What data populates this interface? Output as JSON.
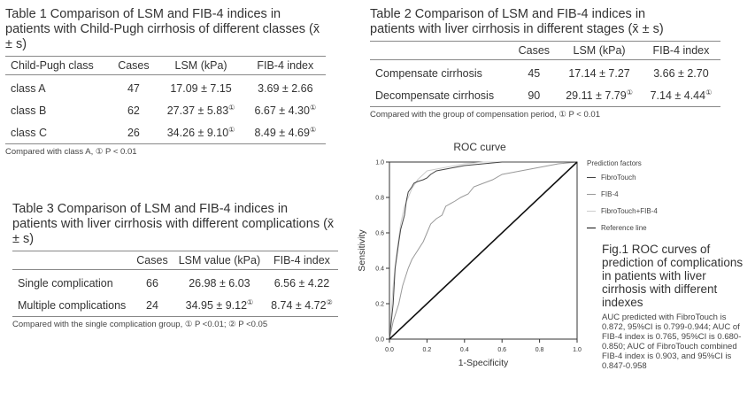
{
  "table1": {
    "title": "Table 1 Comparison of LSM and FIB-4 indices in patients with Child-Pugh cirrhosis of different classes (x̄ ± s)",
    "headers": [
      "Child-Pugh class",
      "Cases",
      "LSM (kPa)",
      "FIB-4 index"
    ],
    "rows": [
      {
        "label": "class A",
        "cases": "47",
        "lsm": "17.09 ± 7.15",
        "lsm_mark": "",
        "fib": "3.69 ± 2.66",
        "fib_mark": ""
      },
      {
        "label": "class B",
        "cases": "62",
        "lsm": "27.37 ± 5.83",
        "lsm_mark": "①",
        "fib": "6.67 ± 4.30",
        "fib_mark": "①"
      },
      {
        "label": "class C",
        "cases": "26",
        "lsm": "34.26 ± 9.10",
        "lsm_mark": "①",
        "fib": "8.49 ± 4.69",
        "fib_mark": "①"
      }
    ],
    "note": "Compared with class A, ① P < 0.01"
  },
  "table2": {
    "title": "Table 2 Comparison of LSM and FIB-4 indices in patients with liver cirrhosis in different stages (x̄ ± s)",
    "headers": [
      "",
      "Cases",
      "LSM (kPa)",
      "FIB-4 index"
    ],
    "rows": [
      {
        "label": "Compensate cirrhosis",
        "cases": "45",
        "lsm": "17.14 ± 7.27",
        "lsm_mark": "",
        "fib": "3.66 ± 2.70",
        "fib_mark": ""
      },
      {
        "label": "Decompensate cirrhosis",
        "cases": "90",
        "lsm": "29.11 ± 7.79",
        "lsm_mark": "①",
        "fib": "7.14 ± 4.44",
        "fib_mark": "①"
      }
    ],
    "note": "Compared with the group of compensation period, ① P < 0.01"
  },
  "table3": {
    "title": "Table 3 Comparison of LSM and FIB-4 indices in patients with liver cirrhosis with different complications (x̄ ± s)",
    "headers": [
      "",
      "Cases",
      "LSM value (kPa)",
      "FIB-4 index"
    ],
    "rows": [
      {
        "label": "Single complication",
        "cases": "66",
        "lsm": "26.98 ± 6.03",
        "lsm_mark": "",
        "fib": "6.56 ± 4.22",
        "fib_mark": ""
      },
      {
        "label": "Multiple complications",
        "cases": "24",
        "lsm": "34.95 ± 9.12",
        "lsm_mark": "①",
        "fib": "8.74 ± 4.72",
        "fib_mark": "②"
      }
    ],
    "note": "Compared with the single complication group, ① P <0.01; ② P <0.05"
  },
  "figure": {
    "caption": "Fig.1 ROC curves of prediction of complications in patients with liver cirrhosis with different indexes",
    "note": "AUC predicted with FibroTouch is 0.872, 95%CI is 0.799-0.944; AUC of FIB-4 index is 0.765, 95%CI is 0.680-0.850; AUC of FibroTouch combined FIB-4 index is 0.903, and 95%CI is 0.847-0.958"
  },
  "chart_data": {
    "type": "line",
    "title": "ROC curve",
    "xlabel": "1-Specificity",
    "ylabel": "Sensitivity",
    "xlim": [
      0,
      1
    ],
    "ylim": [
      0,
      1
    ],
    "xticks": [
      "0.0",
      "0.2",
      "0.4",
      "0.6",
      "0.8",
      "1.0"
    ],
    "yticks": [
      "0.0",
      "0.2",
      "0.4",
      "0.6",
      "0.8",
      "1.0"
    ],
    "legend_title": "Prediction factors",
    "legend_placement": "right",
    "series": [
      {
        "name": "FibroTouch",
        "color": "#444444",
        "x": [
          0,
          0.02,
          0.03,
          0.05,
          0.06,
          0.08,
          0.09,
          0.1,
          0.12,
          0.13,
          0.15,
          0.18,
          0.2,
          0.22,
          0.25,
          0.3,
          0.35,
          0.4,
          0.5,
          0.6,
          0.75,
          1.0
        ],
        "y": [
          0,
          0.2,
          0.4,
          0.55,
          0.62,
          0.7,
          0.78,
          0.83,
          0.86,
          0.88,
          0.89,
          0.9,
          0.91,
          0.93,
          0.95,
          0.96,
          0.97,
          0.98,
          0.99,
          1.0,
          1.0,
          1.0
        ]
      },
      {
        "name": "FIB-4",
        "color": "#999999",
        "x": [
          0,
          0.02,
          0.05,
          0.07,
          0.1,
          0.12,
          0.15,
          0.18,
          0.2,
          0.22,
          0.25,
          0.28,
          0.3,
          0.35,
          0.38,
          0.42,
          0.45,
          0.5,
          0.55,
          0.6,
          0.7,
          0.8,
          0.9,
          1.0
        ],
        "y": [
          0,
          0.1,
          0.2,
          0.3,
          0.4,
          0.45,
          0.5,
          0.55,
          0.6,
          0.65,
          0.68,
          0.7,
          0.75,
          0.78,
          0.8,
          0.82,
          0.86,
          0.88,
          0.9,
          0.93,
          0.95,
          0.97,
          0.99,
          1.0
        ]
      },
      {
        "name": "FibroTouch+FIB-4",
        "color": "#cccccc",
        "x": [
          0,
          0.02,
          0.04,
          0.06,
          0.08,
          0.1,
          0.12,
          0.15,
          0.18,
          0.2,
          0.25,
          0.3,
          0.35,
          0.4,
          0.5,
          0.6,
          0.7,
          1.0
        ],
        "y": [
          0,
          0.3,
          0.5,
          0.65,
          0.75,
          0.8,
          0.85,
          0.9,
          0.93,
          0.95,
          0.96,
          0.97,
          0.98,
          0.99,
          1.0,
          1.0,
          1.0,
          1.0
        ]
      },
      {
        "name": "Reference line",
        "color": "#111111",
        "x": [
          0,
          1
        ],
        "y": [
          0,
          1
        ]
      }
    ]
  }
}
